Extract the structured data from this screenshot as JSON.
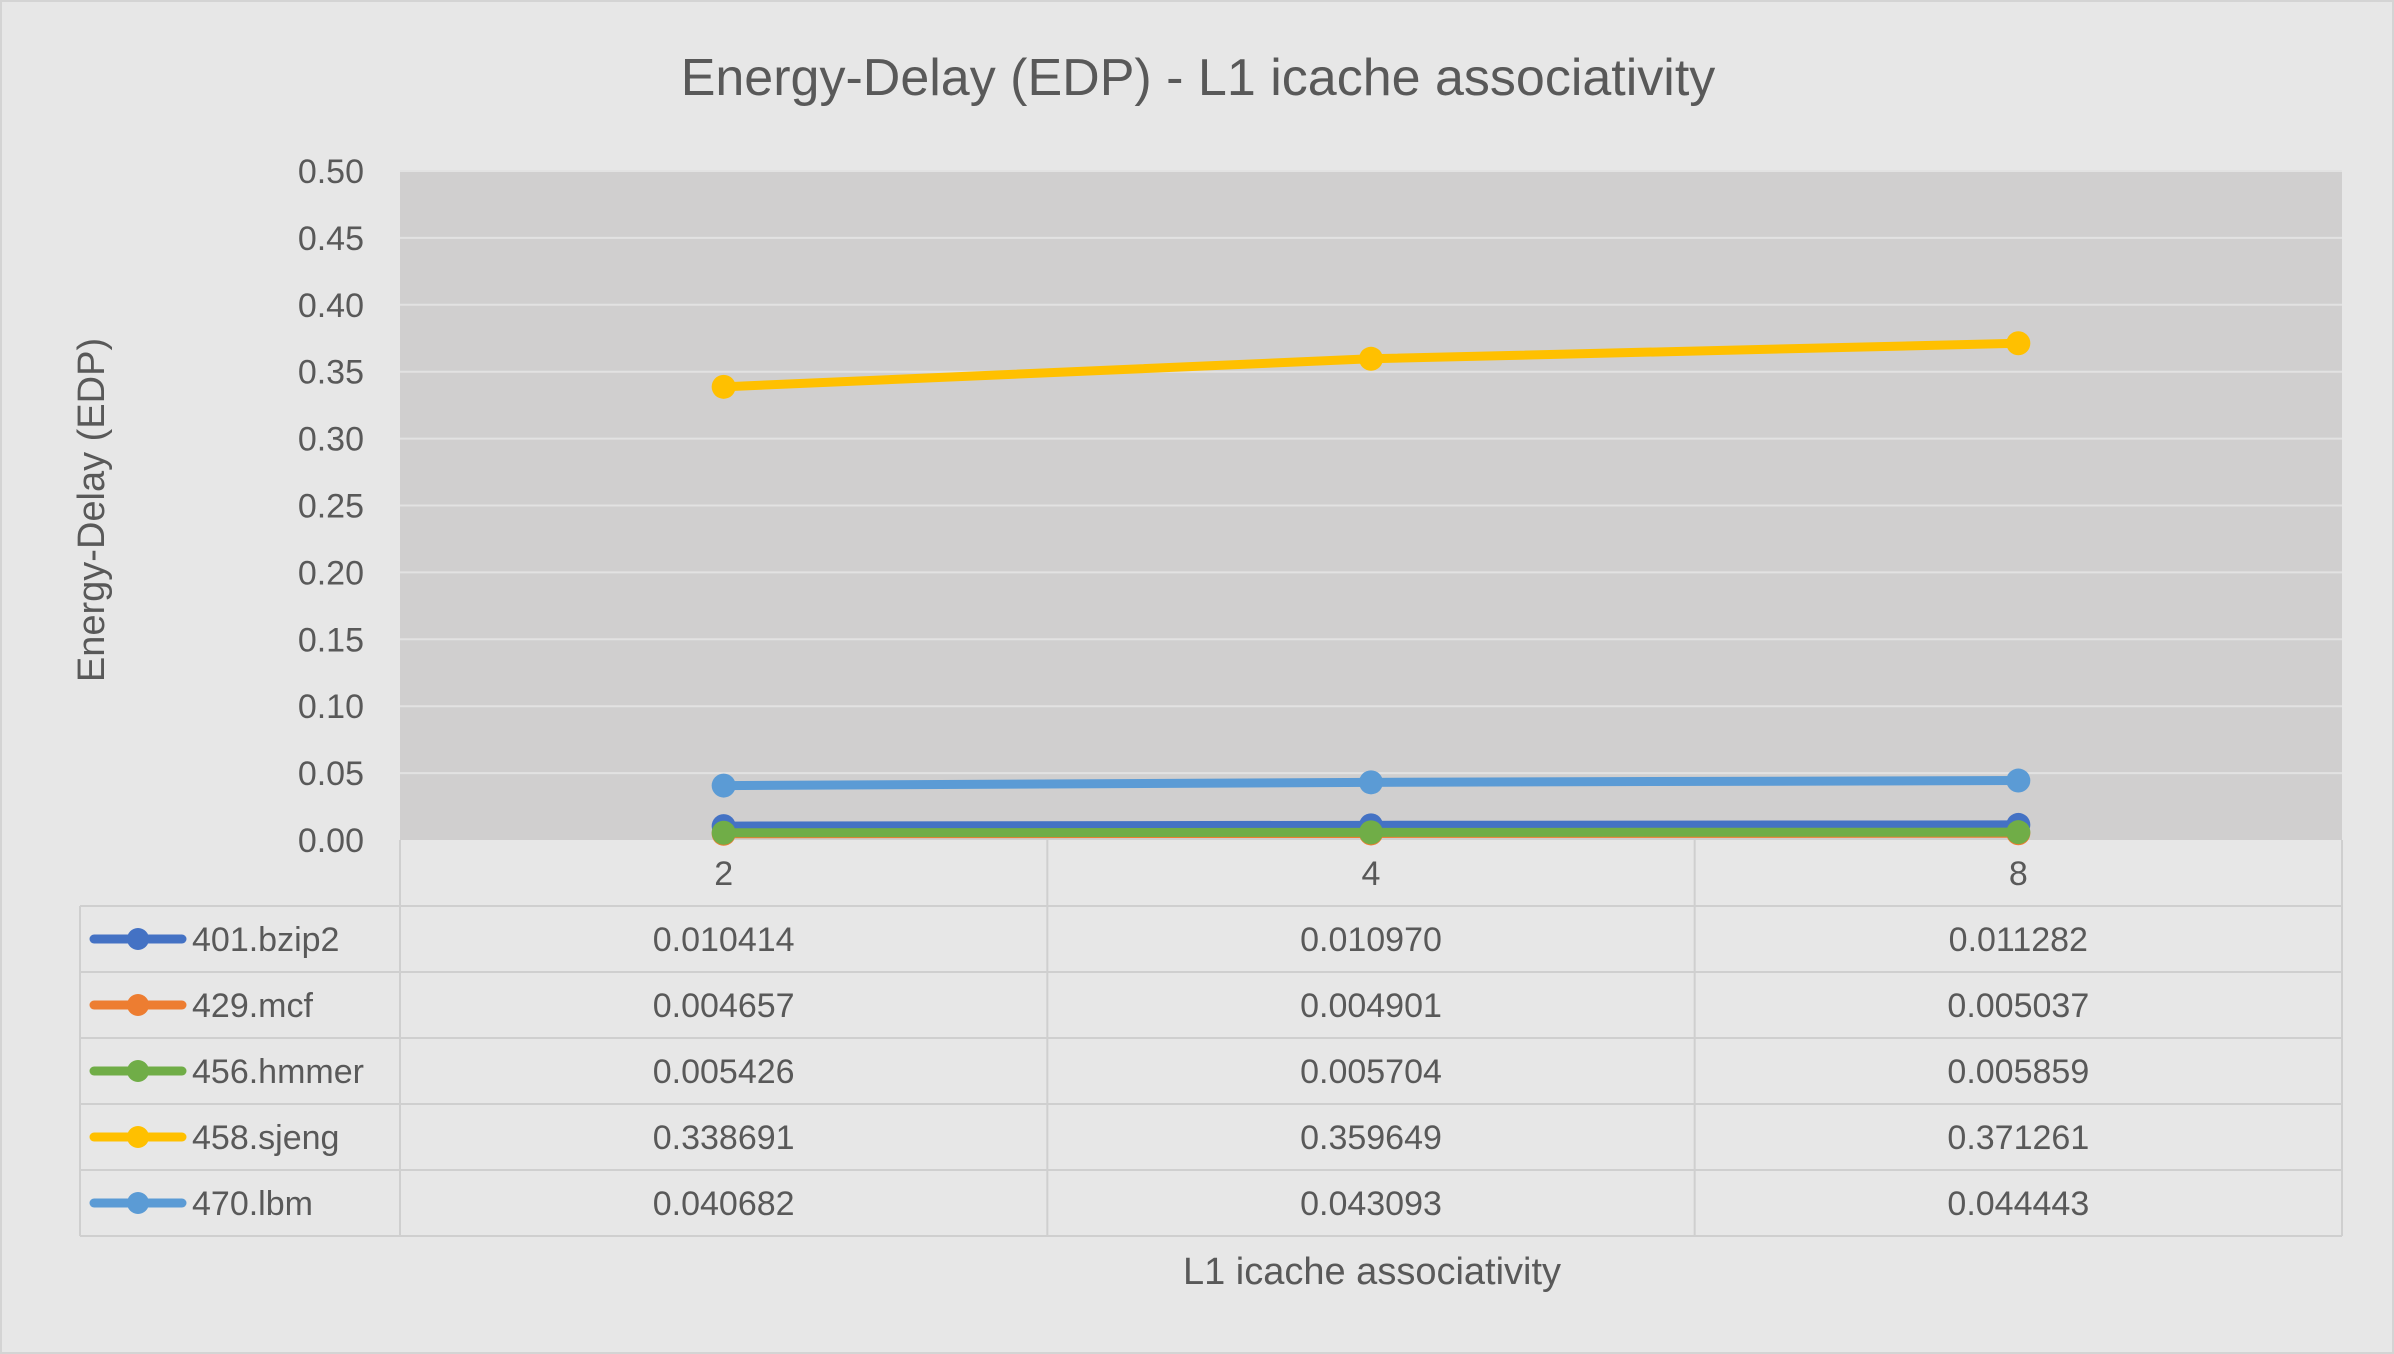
{
  "chart_data": {
    "type": "line",
    "title": "Energy-Delay (EDP) - L1 icache associativity",
    "xlabel": "L1 icache associativity",
    "ylabel": "Energy-Delay (EDP)",
    "categories": [
      "2",
      "4",
      "8"
    ],
    "ylim": [
      0,
      0.5
    ],
    "yticks": [
      "0.00",
      "0.05",
      "0.10",
      "0.15",
      "0.20",
      "0.25",
      "0.30",
      "0.35",
      "0.40",
      "0.45",
      "0.50"
    ],
    "grid": true,
    "legend": "data-table",
    "series": [
      {
        "name": "401.bzip2",
        "color": "#4472c4",
        "values": [
          0.010414,
          0.01097,
          0.011282
        ],
        "labels": [
          "0.010414",
          "0.010970",
          "0.011282"
        ]
      },
      {
        "name": "429.mcf",
        "color": "#ed7d31",
        "values": [
          0.004657,
          0.004901,
          0.005037
        ],
        "labels": [
          "0.004657",
          "0.004901",
          "0.005037"
        ]
      },
      {
        "name": "456.hmmer",
        "color": "#70ad47",
        "values": [
          0.005426,
          0.005704,
          0.005859
        ],
        "labels": [
          "0.005426",
          "0.005704",
          "0.005859"
        ]
      },
      {
        "name": "458.sjeng",
        "color": "#ffc000",
        "values": [
          0.338691,
          0.359649,
          0.371261
        ],
        "labels": [
          "0.338691",
          "0.359649",
          "0.371261"
        ]
      },
      {
        "name": "470.lbm",
        "color": "#5b9bd5",
        "values": [
          0.040682,
          0.043093,
          0.044443
        ],
        "labels": [
          "0.040682",
          "0.043093",
          "0.044443"
        ]
      }
    ]
  }
}
